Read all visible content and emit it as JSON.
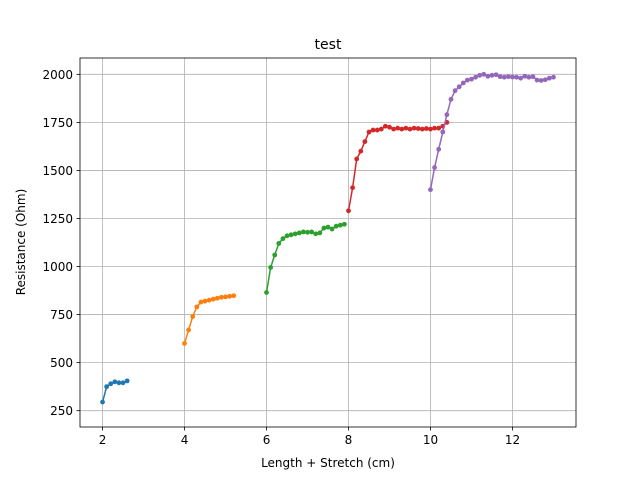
{
  "chart_data": {
    "type": "line",
    "title": "test",
    "xlabel": "Length + Stretch (cm)",
    "ylabel": "Resistance (Ohm)",
    "xlim": [
      1.45,
      13.55
    ],
    "ylim": [
      165,
      2085
    ],
    "xticks": [
      2,
      4,
      6,
      8,
      10,
      12
    ],
    "yticks": [
      250,
      500,
      750,
      1000,
      1250,
      1500,
      1750,
      2000
    ],
    "grid": true,
    "marker": "circle",
    "series": [
      {
        "color": "#1f77b4",
        "points": [
          [
            2.0,
            295
          ],
          [
            2.1,
            375
          ],
          [
            2.2,
            390
          ],
          [
            2.3,
            400
          ],
          [
            2.4,
            395
          ],
          [
            2.5,
            395
          ],
          [
            2.6,
            405
          ]
        ]
      },
      {
        "color": "#ff7f0e",
        "points": [
          [
            4.0,
            600
          ],
          [
            4.1,
            670
          ],
          [
            4.2,
            740
          ],
          [
            4.3,
            790
          ],
          [
            4.4,
            815
          ],
          [
            4.5,
            820
          ],
          [
            4.6,
            825
          ],
          [
            4.7,
            830
          ],
          [
            4.8,
            835
          ],
          [
            4.9,
            840
          ],
          [
            5.0,
            842
          ],
          [
            5.1,
            845
          ],
          [
            5.2,
            848
          ]
        ]
      },
      {
        "color": "#2ca02c",
        "points": [
          [
            6.0,
            865
          ],
          [
            6.1,
            995
          ],
          [
            6.2,
            1060
          ],
          [
            6.3,
            1120
          ],
          [
            6.4,
            1145
          ],
          [
            6.5,
            1160
          ],
          [
            6.6,
            1165
          ],
          [
            6.7,
            1170
          ],
          [
            6.8,
            1175
          ],
          [
            6.9,
            1180
          ],
          [
            7.0,
            1178
          ],
          [
            7.1,
            1180
          ],
          [
            7.2,
            1170
          ],
          [
            7.3,
            1175
          ],
          [
            7.4,
            1200
          ],
          [
            7.5,
            1205
          ],
          [
            7.6,
            1195
          ],
          [
            7.7,
            1210
          ],
          [
            7.8,
            1215
          ],
          [
            7.9,
            1220
          ]
        ]
      },
      {
        "color": "#d62728",
        "points": [
          [
            8.0,
            1290
          ],
          [
            8.1,
            1410
          ],
          [
            8.2,
            1560
          ],
          [
            8.3,
            1600
          ],
          [
            8.4,
            1650
          ],
          [
            8.5,
            1700
          ],
          [
            8.6,
            1710
          ],
          [
            8.7,
            1710
          ],
          [
            8.8,
            1715
          ],
          [
            8.9,
            1730
          ],
          [
            9.0,
            1725
          ],
          [
            9.1,
            1715
          ],
          [
            9.2,
            1720
          ],
          [
            9.3,
            1715
          ],
          [
            9.4,
            1720
          ],
          [
            9.5,
            1715
          ],
          [
            9.6,
            1720
          ],
          [
            9.7,
            1718
          ],
          [
            9.8,
            1715
          ],
          [
            9.9,
            1718
          ],
          [
            10.0,
            1715
          ],
          [
            10.1,
            1720
          ],
          [
            10.2,
            1720
          ],
          [
            10.3,
            1730
          ],
          [
            10.4,
            1750
          ]
        ]
      },
      {
        "color": "#9467bd",
        "points": [
          [
            10.0,
            1400
          ],
          [
            10.1,
            1515
          ],
          [
            10.2,
            1610
          ],
          [
            10.3,
            1700
          ],
          [
            10.4,
            1790
          ],
          [
            10.5,
            1870
          ],
          [
            10.6,
            1915
          ],
          [
            10.7,
            1935
          ],
          [
            10.8,
            1955
          ],
          [
            10.9,
            1970
          ],
          [
            11.0,
            1975
          ],
          [
            11.1,
            1985
          ],
          [
            11.2,
            1995
          ],
          [
            11.3,
            2000
          ],
          [
            11.4,
            1990
          ],
          [
            11.5,
            1995
          ],
          [
            11.6,
            1998
          ],
          [
            11.7,
            1988
          ],
          [
            11.8,
            1985
          ],
          [
            11.9,
            1988
          ],
          [
            12.0,
            1986
          ],
          [
            12.1,
            1985
          ],
          [
            12.2,
            1980
          ],
          [
            12.3,
            1990
          ],
          [
            12.4,
            1985
          ],
          [
            12.5,
            1988
          ],
          [
            12.6,
            1970
          ],
          [
            12.7,
            1968
          ],
          [
            12.8,
            1972
          ],
          [
            12.9,
            1980
          ],
          [
            13.0,
            1985
          ]
        ]
      }
    ]
  }
}
